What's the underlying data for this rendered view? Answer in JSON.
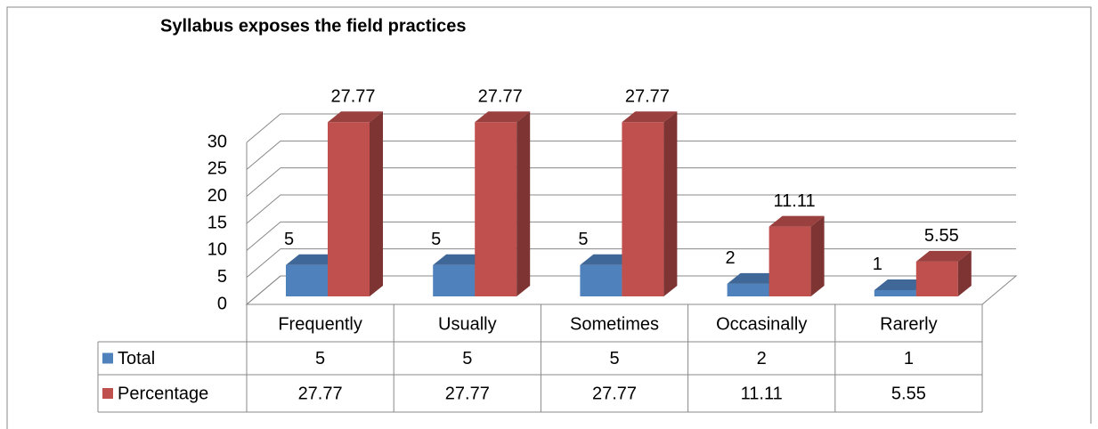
{
  "chart_data": {
    "type": "bar3d",
    "title": "Syllabus exposes the field practices",
    "categories": [
      "Frequently",
      "Usually",
      "Sometimes",
      "Occasinally",
      "Rarerly"
    ],
    "series": [
      {
        "name": "Total",
        "color": "#4f81bd",
        "values": [
          5,
          5,
          5,
          2,
          1
        ]
      },
      {
        "name": "Percentage",
        "color": "#c0504d",
        "values": [
          27.77,
          27.77,
          27.77,
          11.11,
          5.55
        ]
      }
    ],
    "ylim": [
      0,
      30
    ],
    "yticks": [
      0,
      5,
      10,
      15,
      20,
      25,
      30
    ],
    "grid": true,
    "data_table": true
  }
}
